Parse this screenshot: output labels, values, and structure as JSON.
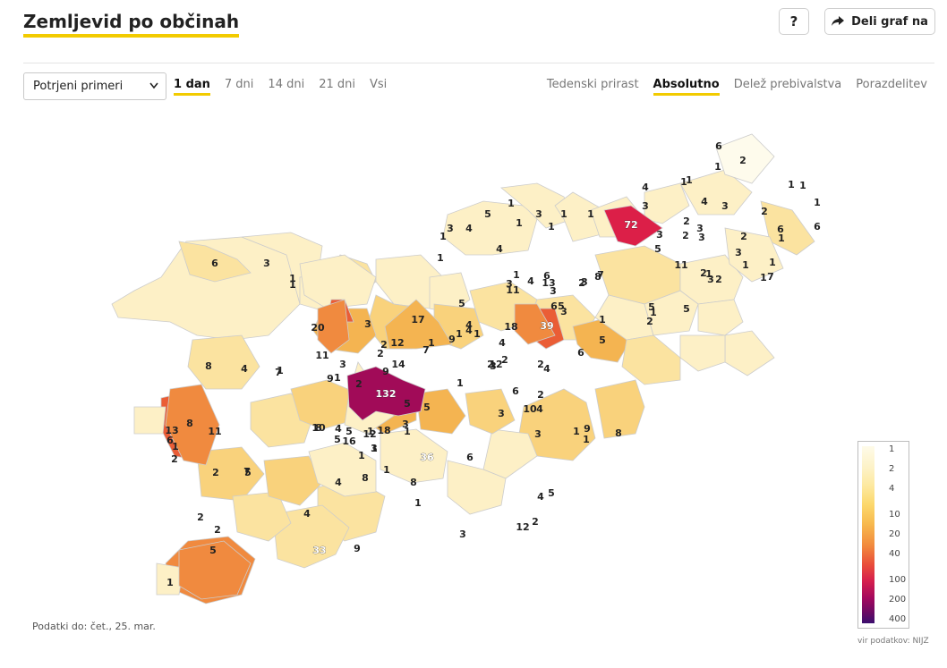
{
  "header": {
    "title": "Zemljevid po občinah",
    "help_label": "?",
    "share_label": "Deli graf na"
  },
  "controls": {
    "select_value": "Potrjeni primeri",
    "range_tabs": [
      {
        "label": "1 dan",
        "active": true
      },
      {
        "label": "7 dni",
        "active": false
      },
      {
        "label": "14 dni",
        "active": false
      },
      {
        "label": "21 dni",
        "active": false
      },
      {
        "label": "Vsi",
        "active": false
      }
    ],
    "metric_tabs": [
      {
        "label": "Tedenski prirast",
        "active": false
      },
      {
        "label": "Absolutno",
        "active": true
      },
      {
        "label": "Delež prebivalstva",
        "active": false
      },
      {
        "label": "Porazdelitev",
        "active": false
      }
    ]
  },
  "map": {
    "municipality_values": [
      "6",
      "2",
      "1",
      "1",
      "1",
      "4",
      "3",
      "1",
      "4",
      "3",
      "1",
      "2",
      "5",
      "4",
      "3",
      "1",
      "1",
      "1",
      "1",
      "1",
      "3",
      "1",
      "72",
      "3",
      "2",
      "3",
      "2",
      "3",
      "1",
      "6",
      "1",
      "2",
      "3",
      "1",
      "1",
      "6",
      "6",
      "3",
      "1",
      "1",
      "1",
      "4",
      "3",
      "13",
      "5",
      "11",
      "2",
      "7",
      "1",
      "3",
      "2",
      "1",
      "5",
      "5",
      "8",
      "3",
      "2",
      "7",
      "3",
      "1",
      "6",
      "4",
      "11",
      "5",
      "2",
      "1",
      "1",
      "20",
      "3",
      "17",
      "4",
      "18",
      "39",
      "6",
      "3",
      "5",
      "4",
      "9",
      "1",
      "1",
      "4",
      "1",
      "7",
      "3",
      "2",
      "4",
      "6",
      "5",
      "9",
      "2",
      "2",
      "14",
      "12",
      "2",
      "11",
      "8",
      "7",
      "4",
      "2",
      "3",
      "9",
      "1",
      "1",
      "132",
      "5",
      "5",
      "12",
      "2",
      "6",
      "1",
      "2",
      "4",
      "3",
      "10",
      "3",
      "1",
      "1",
      "8",
      "8",
      "10",
      "16",
      "18",
      "3",
      "6",
      "36",
      "12",
      "5",
      "1",
      "1",
      "1",
      "4",
      "1",
      "5",
      "3",
      "9",
      "8",
      "13",
      "11",
      "6",
      "1",
      "2",
      "5",
      "7",
      "2",
      "4",
      "1",
      "8",
      "4",
      "2",
      "2",
      "9",
      "8",
      "4",
      "5",
      "2",
      "12",
      "3",
      "1",
      "33",
      "5",
      "1"
    ],
    "colors": {
      "very_low": "#fefbec",
      "low": "#fdf0c6",
      "mid_low": "#fbe3a0",
      "mid": "#f9d27c",
      "mid_high": "#f4b451",
      "high": "#f08a3f",
      "very_high": "#ea5d36",
      "extreme": "#dc1f48",
      "max": "#a10b58",
      "blank": "#ffffff",
      "border": "#cccccc"
    }
  },
  "legend": {
    "labels": [
      "1",
      "2",
      "4",
      "10",
      "20",
      "40",
      "100",
      "200",
      "400"
    ]
  },
  "footer": {
    "date_note": "Podatki do: čet., 25. mar.",
    "source": "vir podatkov: NIJZ"
  }
}
